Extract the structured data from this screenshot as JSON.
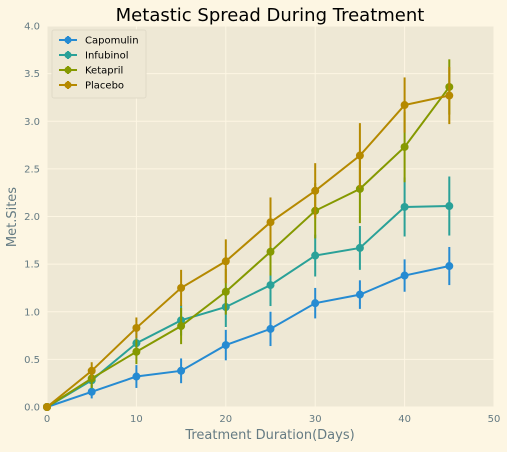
{
  "chart_data": {
    "type": "line",
    "title": "Metastic Spread During Treatment",
    "xlabel": "Treatment Duration(Days)",
    "ylabel": "Met.Sites",
    "xlim": [
      0,
      50
    ],
    "ylim": [
      0,
      4.0
    ],
    "xticks": [
      "0",
      "10",
      "20",
      "30",
      "40",
      "50"
    ],
    "yticks": [
      "0.0",
      "0.5",
      "1.0",
      "1.5",
      "2.0",
      "2.5",
      "3.0",
      "3.5",
      "4.0"
    ],
    "grid": true,
    "legend_position": "top-left",
    "x": [
      0,
      5,
      10,
      15,
      20,
      25,
      30,
      35,
      40,
      45
    ],
    "series": [
      {
        "name": "Capomulin",
        "color": "#268bd2",
        "values": [
          0.0,
          0.16,
          0.32,
          0.38,
          0.65,
          0.82,
          1.09,
          1.18,
          1.38,
          1.48
        ],
        "errors": [
          0.0,
          0.07,
          0.12,
          0.13,
          0.16,
          0.18,
          0.16,
          0.15,
          0.17,
          0.2
        ]
      },
      {
        "name": "Infubinol",
        "color": "#2aa198",
        "values": [
          0.0,
          0.28,
          0.67,
          0.91,
          1.05,
          1.28,
          1.59,
          1.67,
          2.1,
          2.11
        ],
        "errors": [
          0.0,
          0.09,
          0.13,
          0.16,
          0.21,
          0.22,
          0.22,
          0.23,
          0.31,
          0.31
        ]
      },
      {
        "name": "Ketapril",
        "color": "#859900",
        "values": [
          0.0,
          0.3,
          0.58,
          0.85,
          1.21,
          1.63,
          2.06,
          2.29,
          2.73,
          3.36
        ],
        "errors": [
          0.0,
          0.1,
          0.13,
          0.19,
          0.24,
          0.25,
          0.29,
          0.36,
          0.37,
          0.29
        ]
      },
      {
        "name": "Placebo",
        "color": "#b58900",
        "values": [
          0.0,
          0.38,
          0.83,
          1.25,
          1.53,
          1.94,
          2.27,
          2.64,
          3.17,
          3.27
        ],
        "errors": [
          0.0,
          0.09,
          0.11,
          0.19,
          0.23,
          0.26,
          0.29,
          0.34,
          0.29,
          0.3
        ]
      }
    ]
  },
  "colors": {
    "figure_background": "#fdf6e3",
    "plot_background": "#eee8d5",
    "grid": "#fdf6e3",
    "axis_text": "#657b83",
    "title_text": "#000000"
  }
}
